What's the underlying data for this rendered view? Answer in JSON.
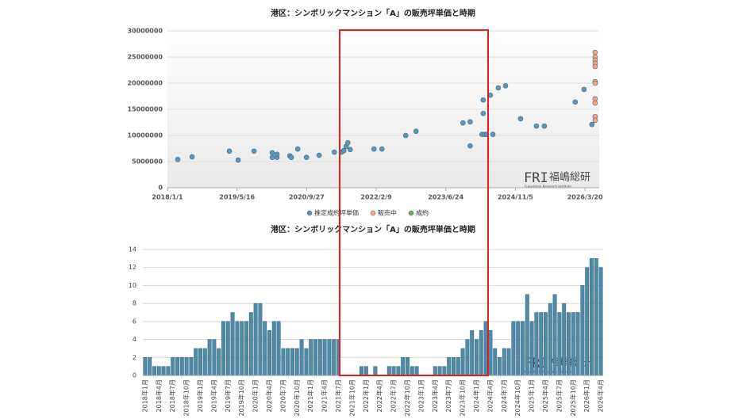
{
  "chart_data": [
    {
      "type": "scatter",
      "title": "港区：シンボリックマンション「A」の販売坪単価と時期",
      "xlim": [
        "2018/1/1",
        "2026/6/30"
      ],
      "xticks": [
        "2018/1/1",
        "2019/5/16",
        "2020/9/27",
        "2022/2/9",
        "2023/6/24",
        "2024/11/5",
        "2026/3/20"
      ],
      "ylim": [
        0,
        30000000
      ],
      "yticks": [
        0,
        5000000,
        10000000,
        15000000,
        20000000,
        25000000,
        30000000
      ],
      "grid": true,
      "legend": "bottom",
      "series": [
        {
          "name": "推定成約坪単価",
          "color": "#5f95b8",
          "x": [
            "2018/3/16",
            "2018/6/27",
            "2019/3/22",
            "2019/5/24",
            "2019/9/15",
            "2020/1/24",
            "2020/1/24",
            "2020/2/27",
            "2020/2/27",
            "2020/5/29",
            "2020/6/9",
            "2020/7/25",
            "2020/9/26",
            "2020/12/26",
            "2021/4/14",
            "2021/6/4",
            "2021/6/21",
            "2021/7/8",
            "2021/7/20",
            "2021/8/6",
            "2022/1/24",
            "2022/3/22",
            "2022/9/9",
            "2022/11/22",
            "2023/10/25",
            "2023/12/16",
            "2023/12/16",
            "2024/3/10",
            "2024/3/19",
            "2024/3/19",
            "2024/3/30",
            "2024/4/11",
            "2024/5/9",
            "2024/5/27",
            "2024/7/5",
            "2024/8/26",
            "2024/12/12",
            "2025/4/5",
            "2025/6/1",
            "2026/1/9",
            "2026/3/13",
            "2026/5/9"
          ],
          "values": [
            5400000,
            5900000,
            7000000,
            5300000,
            7000000,
            6700000,
            5800000,
            5800000,
            6400000,
            6100000,
            5800000,
            7400000,
            5800000,
            6200000,
            6800000,
            6800000,
            7100000,
            7900000,
            8600000,
            7300000,
            7400000,
            7400000,
            10000000,
            10800000,
            12400000,
            12600000,
            8000000,
            10200000,
            14200000,
            16800000,
            10200000,
            10200000,
            17700000,
            10200000,
            19100000,
            19500000,
            13200000,
            11800000,
            11800000,
            16400000,
            18800000,
            12100000
          ]
        },
        {
          "name": "販売中",
          "color": "#f4a582",
          "x": [
            "2026/6/1",
            "2026/6/1",
            "2026/6/1",
            "2026/6/1",
            "2026/6/1",
            "2026/6/1",
            "2026/6/1",
            "2026/6/1",
            "2026/6/1",
            "2026/6/1",
            "2026/6/1"
          ],
          "values": [
            25900000,
            25000000,
            24400000,
            23800000,
            23200000,
            20300000,
            20000000,
            17000000,
            16200000,
            13600000,
            12900000
          ]
        },
        {
          "name": "成約",
          "color": "#6fa85a",
          "x": [],
          "values": []
        }
      ]
    },
    {
      "type": "bar",
      "title": "港区：シンボリックマンション「A」の販売坪単価と時期",
      "categories": [
        "2018年1月",
        null,
        null,
        "2018年4月",
        null,
        null,
        "2018年7月",
        null,
        null,
        "2018年10月",
        null,
        null,
        "2019年1月",
        null,
        null,
        "2019年4月",
        null,
        null,
        "2019年7月",
        null,
        null,
        "2019年10月",
        null,
        null,
        "2020年1月",
        null,
        null,
        "2020年4月",
        null,
        null,
        "2020年7月",
        null,
        null,
        "2020年10月",
        null,
        null,
        "2021年1月",
        null,
        null,
        "2021年4月",
        null,
        null,
        "2021年7月",
        null,
        null,
        "2021年10月",
        null,
        null,
        "2022年1月",
        null,
        null,
        "2022年4月",
        null,
        null,
        "2022年7月",
        null,
        null,
        "2022年10月",
        null,
        null,
        "2023年1月",
        null,
        null,
        "2023年4月",
        null,
        null,
        "2023年7月",
        null,
        null,
        "2023年10月",
        null,
        null,
        "2024年1月",
        null,
        null,
        "2024年4月",
        null,
        null,
        "2024年7月",
        null,
        null,
        "2024年10月",
        null,
        null,
        "2025年1月",
        null,
        null,
        "2025年4月",
        null,
        null,
        "2025年7月",
        null,
        null,
        "2025年10月",
        null,
        null,
        "2026年1月",
        null,
        null,
        "2026年4月"
      ],
      "values": [
        2,
        2,
        1,
        1,
        1,
        1,
        2,
        2,
        2,
        2,
        2,
        3,
        3,
        3,
        4,
        4,
        3,
        6,
        6,
        7,
        6,
        6,
        6,
        7,
        8,
        8,
        6,
        5,
        6,
        6,
        3,
        3,
        3,
        3,
        4,
        3,
        4,
        4,
        4,
        4,
        4,
        4,
        4,
        0,
        0,
        0,
        0,
        1,
        1,
        0,
        1,
        0,
        0,
        1,
        1,
        1,
        2,
        2,
        1,
        1,
        0,
        0,
        0,
        1,
        1,
        1,
        2,
        2,
        2,
        3,
        4,
        5,
        4,
        5,
        6,
        5,
        3,
        2,
        3,
        3,
        6,
        6,
        6,
        9,
        6,
        7,
        7,
        7,
        8,
        9,
        7,
        8,
        7,
        7,
        7,
        10,
        12,
        13,
        13,
        12
      ],
      "color": "#4f8aa8",
      "ylim": [
        0,
        14
      ],
      "yticks": [
        0,
        2,
        4,
        6,
        8,
        10,
        12,
        14
      ],
      "grid": true
    }
  ],
  "watermark": {
    "logo": "FRI",
    "name": "福嶋総研",
    "sub": "Fukushima Research Institute"
  }
}
